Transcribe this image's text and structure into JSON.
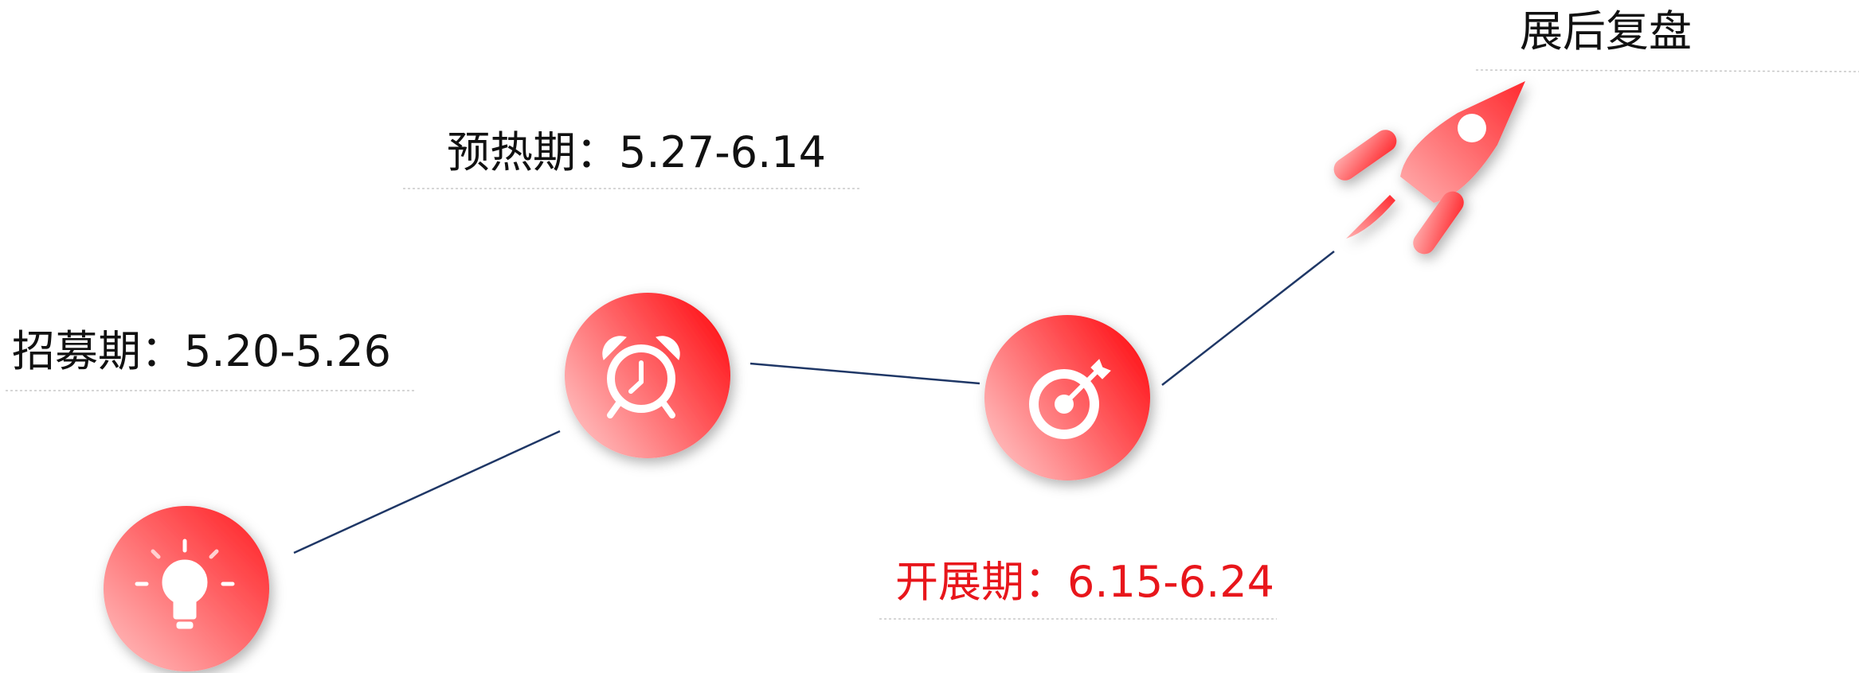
{
  "stages": [
    {
      "label": "招募期：5.20-5.26"
    },
    {
      "label": "预热期：5.27-6.14"
    },
    {
      "label": "开展期：6.15-6.24"
    },
    {
      "label": "展后复盘"
    }
  ]
}
